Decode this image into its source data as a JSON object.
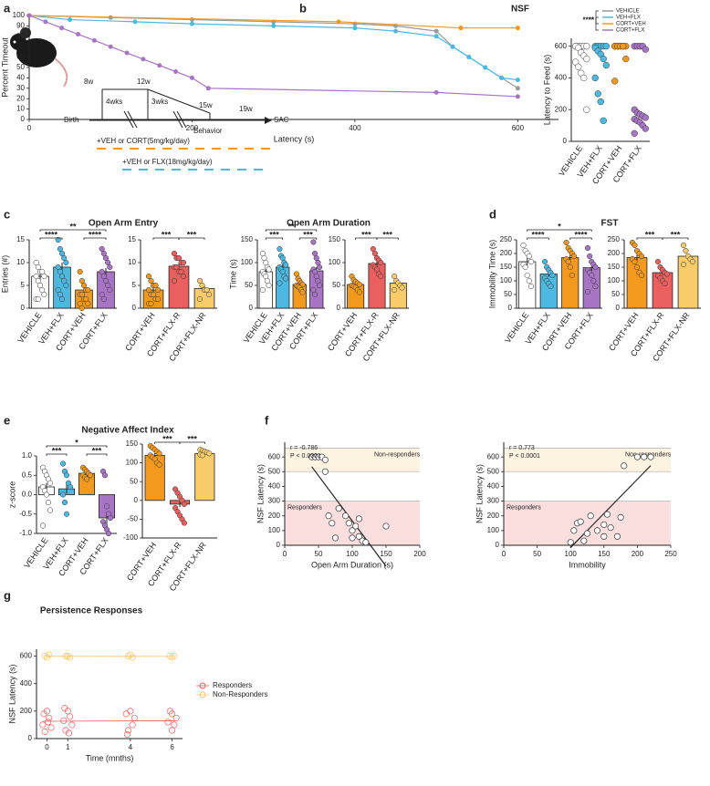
{
  "panel_labels": [
    "a",
    "b",
    "c",
    "d",
    "e",
    "f",
    "g"
  ],
  "diagram": {
    "ages": [
      "8w",
      "12w",
      "15w",
      "19w"
    ],
    "intervals": [
      "4wks",
      "3wks"
    ],
    "birth": "Birth",
    "behavior": "Behavior",
    "end": "SAC",
    "treatments": [
      "+VEH or CORT(5mg/kg/day)",
      "+VEH or FLX(18mg/kg/day)"
    ]
  },
  "chart_data": [
    {
      "type": "line",
      "title": "NSF",
      "x_label": "Latency (s)",
      "y_label": "Percent Timeout",
      "xlim": [
        0,
        650
      ],
      "xticks": [
        0,
        200,
        400,
        600
      ],
      "ylim": [
        0,
        100
      ],
      "yticks": [
        0,
        10,
        20,
        30,
        40,
        50,
        60,
        70,
        80,
        90,
        100
      ],
      "annotations": [
        "**",
        "****"
      ],
      "series": [
        {
          "name": "VEHICLE",
          "color": "#9a9a9a",
          "x": [
            0,
            100,
            200,
            300,
            400,
            450,
            500,
            520,
            540,
            560,
            580,
            600
          ],
          "values": [
            100,
            98,
            96,
            94,
            92,
            90,
            85,
            70,
            60,
            50,
            40,
            30
          ]
        },
        {
          "name": "VEH+FLX",
          "color": "#4db8e0",
          "x": [
            0,
            50,
            130,
            200,
            300,
            400,
            450,
            500,
            520,
            540,
            560,
            580,
            600
          ],
          "values": [
            100,
            96,
            94,
            92,
            90,
            88,
            85,
            80,
            70,
            60,
            50,
            40,
            38
          ]
        },
        {
          "name": "CORT+VEH",
          "color": "#f39a1e",
          "x": [
            0,
            380,
            530,
            600
          ],
          "values": [
            100,
            94,
            88,
            88
          ]
        },
        {
          "name": "CORT+FLX",
          "color": "#a874c4",
          "x": [
            0,
            20,
            40,
            60,
            80,
            100,
            120,
            140,
            160,
            180,
            200,
            220,
            500,
            600
          ],
          "values": [
            100,
            94,
            88,
            82,
            76,
            70,
            64,
            58,
            52,
            46,
            40,
            30,
            26,
            22
          ]
        }
      ]
    },
    {
      "type": "strip",
      "y_label": "Latency to Feed (s)",
      "categories": [
        "VEHICLE",
        "VEH+FLX",
        "CORT+VEH",
        "CORT+FLX"
      ],
      "colors": [
        "#ffffff",
        "#4db8e0",
        "#f39a1e",
        "#a874c4"
      ],
      "label_colors": [
        "#222222",
        "#4db8e0",
        "#f39a1e",
        "#a874c4"
      ],
      "ylim": [
        0,
        650
      ],
      "yticks": [
        0,
        200,
        400,
        600
      ],
      "points": [
        [
          600,
          600,
          600,
          600,
          600,
          600,
          590,
          560,
          540,
          520,
          500,
          470,
          430,
          400,
          200
        ],
        [
          600,
          600,
          600,
          600,
          600,
          590,
          570,
          550,
          520,
          480,
          400,
          300,
          250,
          130
        ],
        [
          600,
          600,
          600,
          600,
          600,
          600,
          600,
          600,
          600,
          520,
          380
        ],
        [
          600,
          600,
          600,
          600,
          580,
          200,
          180,
          170,
          160,
          150,
          140,
          130,
          120,
          100,
          80,
          50
        ]
      ]
    },
    {
      "type": "bar",
      "title": "Open Arm Entry",
      "y_label": "Entries (#)",
      "categories": [
        "VEHICLE",
        "VEH+FLX",
        "CORT+VEH",
        "CORT+FLX"
      ],
      "colors": [
        "#ffffff",
        "#4db8e0",
        "#f39a1e",
        "#a874c4"
      ],
      "values": [
        7,
        9,
        4,
        8
      ],
      "errors": [
        0.8,
        1,
        0.6,
        0.8
      ],
      "ylim": [
        0,
        15
      ],
      "yticks": [
        0,
        5,
        10,
        15
      ],
      "annotations": [
        "**",
        "****",
        "****"
      ],
      "points": [
        [
          10,
          9,
          8,
          8,
          7,
          7,
          6,
          5,
          4,
          3,
          2,
          2
        ],
        [
          15,
          13,
          12,
          11,
          10,
          9,
          8,
          7,
          6,
          5,
          4,
          3,
          2
        ],
        [
          8,
          6,
          5,
          4,
          4,
          3,
          3,
          2,
          2,
          1,
          1,
          0
        ],
        [
          13,
          12,
          11,
          10,
          9,
          8,
          7,
          6,
          5,
          4,
          3,
          2
        ]
      ]
    },
    {
      "type": "bar",
      "categories": [
        "CORT+VEH",
        "CORT+FLX-R",
        "CORT+FLX-NR"
      ],
      "colors": [
        "#f39a1e",
        "#e9605f",
        "#f9cc6a"
      ],
      "values": [
        4,
        9.2,
        4.3
      ],
      "errors": [
        0.5,
        0.6,
        0.7
      ],
      "ylim": [
        0,
        15
      ],
      "yticks": [
        0,
        5,
        10,
        15
      ],
      "annotations": [
        "***",
        "***"
      ],
      "points": [
        [
          7,
          6,
          5,
          5,
          4,
          4,
          3,
          3,
          2,
          2,
          1,
          1
        ],
        [
          12,
          11,
          11,
          10,
          10,
          9,
          9,
          8,
          8,
          7,
          6
        ],
        [
          6,
          5,
          4,
          4,
          3,
          2
        ]
      ]
    },
    {
      "type": "bar",
      "title": "Open Arm Duration",
      "y_label": "Time (s)",
      "categories": [
        "VEHICLE",
        "VEH+FLX",
        "CORT+VEH",
        "CORT+FLX"
      ],
      "colors": [
        "#ffffff",
        "#4db8e0",
        "#f39a1e",
        "#a874c4"
      ],
      "values": [
        80,
        90,
        52,
        82
      ],
      "errors": [
        7,
        7,
        4,
        8
      ],
      "ylim": [
        0,
        150
      ],
      "yticks": [
        0,
        50,
        100,
        150
      ],
      "annotations": [
        "**",
        "***",
        "***"
      ],
      "points": [
        [
          120,
          110,
          100,
          90,
          85,
          80,
          75,
          70,
          60,
          50,
          40
        ],
        [
          130,
          115,
          110,
          100,
          95,
          90,
          85,
          80,
          70,
          65,
          55
        ],
        [
          75,
          65,
          60,
          55,
          52,
          50,
          48,
          45,
          40,
          35
        ],
        [
          145,
          120,
          110,
          100,
          90,
          85,
          80,
          70,
          60,
          50,
          40,
          30
        ]
      ]
    },
    {
      "type": "bar",
      "categories": [
        "CORT+VEH",
        "CORT+FLX-R",
        "CORT+FLX-NR"
      ],
      "colors": [
        "#f39a1e",
        "#e9605f",
        "#f9cc6a"
      ],
      "values": [
        52,
        98,
        55
      ],
      "errors": [
        4,
        6,
        5
      ],
      "ylim": [
        0,
        150
      ],
      "yticks": [
        0,
        50,
        100,
        150
      ],
      "annotations": [
        "***",
        "***"
      ],
      "points": [
        [
          70,
          62,
          58,
          55,
          52,
          50,
          48,
          45,
          40,
          35
        ],
        [
          130,
          120,
          110,
          105,
          100,
          95,
          90,
          85,
          75,
          70
        ],
        [
          70,
          60,
          55,
          50,
          45,
          40
        ]
      ]
    },
    {
      "type": "bar",
      "title": "FST",
      "y_label": "Immobility Time (s)",
      "categories": [
        "VEHICLE",
        "VEH+FLX",
        "CORT+VEH",
        "CORT+FLX"
      ],
      "colors": [
        "#ffffff",
        "#4db8e0",
        "#f39a1e",
        "#a874c4"
      ],
      "values": [
        170,
        125,
        185,
        148
      ],
      "errors": [
        15,
        10,
        12,
        12
      ],
      "ylim": [
        0,
        250
      ],
      "yticks": [
        0,
        50,
        100,
        150,
        200,
        250
      ],
      "annotations": [
        "*",
        "****",
        "****"
      ],
      "points": [
        [
          230,
          210,
          200,
          190,
          170,
          160,
          150,
          120,
          100,
          80
        ],
        [
          170,
          150,
          140,
          130,
          120,
          110,
          100,
          90,
          80
        ],
        [
          240,
          220,
          210,
          200,
          190,
          180,
          170,
          150,
          120
        ],
        [
          220,
          190,
          170,
          160,
          150,
          140,
          130,
          120,
          100,
          80,
          60
        ]
      ]
    },
    {
      "type": "bar",
      "categories": [
        "CORT+VEH",
        "CORT+FLX-R",
        "CORT+FLX-NR"
      ],
      "colors": [
        "#f39a1e",
        "#e9605f",
        "#f9cc6a"
      ],
      "values": [
        185,
        130,
        190
      ],
      "errors": [
        10,
        8,
        10
      ],
      "ylim": [
        0,
        250
      ],
      "yticks": [
        0,
        50,
        100,
        150,
        200,
        250
      ],
      "annotations": [
        "***",
        "***"
      ],
      "points": [
        [
          240,
          230,
          210,
          200,
          190,
          180,
          170,
          150,
          130,
          120
        ],
        [
          170,
          150,
          140,
          130,
          125,
          120,
          110,
          100,
          90
        ],
        [
          230,
          210,
          190,
          180,
          170,
          160
        ]
      ]
    },
    {
      "type": "bar",
      "title": "Negative Affect Index",
      "y_label": "z-score",
      "categories": [
        "VEHICLE",
        "VEH+FLX",
        "CORT+VEH",
        "CORT+FLX"
      ],
      "colors": [
        "#ffffff",
        "#4db8e0",
        "#f39a1e",
        "#a874c4"
      ],
      "values": [
        0.2,
        0.15,
        0.55,
        -0.6
      ],
      "errors": [
        0.1,
        0.12,
        0.06,
        0.15
      ],
      "ylim": [
        -1,
        1
      ],
      "yticks": [
        {
          "value": -1,
          "label": "-1.0"
        },
        {
          "value": -0.5,
          "label": "-0.5"
        },
        {
          "value": 0,
          "label": "0.0"
        },
        {
          "value": 0.5,
          "label": "0.5"
        },
        {
          "value": 1,
          "label": "1.0"
        }
      ],
      "annotations": [
        "*",
        "***",
        "***"
      ],
      "points": [
        [
          0.7,
          0.6,
          0.5,
          0.4,
          0.3,
          0.2,
          0.1,
          0,
          -0.2,
          -0.4,
          -0.8
        ],
        [
          0.8,
          0.6,
          0.5,
          0.3,
          0.2,
          0,
          -0.2,
          -0.5
        ],
        [
          0.7,
          0.65,
          0.6,
          0.55,
          0.5,
          0.5,
          0.45,
          0.4
        ],
        [
          0.6,
          0.5,
          -0.3,
          -0.5,
          -0.6,
          -0.7,
          -0.8,
          -0.9,
          -1
        ]
      ]
    },
    {
      "type": "bar",
      "categories": [
        "CORT+VEH",
        "CORT+FLX-R",
        "CORT+FLX-NR"
      ],
      "colors": [
        "#f39a1e",
        "#e9605f",
        "#f9cc6a"
      ],
      "values": [
        120,
        -10,
        125
      ],
      "errors": [
        6,
        8,
        3
      ],
      "ylim": [
        -100,
        150
      ],
      "yticks": [
        -100,
        -50,
        0,
        50,
        100,
        150
      ],
      "annotations": [
        "***",
        "***"
      ],
      "points": [
        [
          145,
          140,
          135,
          130,
          125,
          120,
          115,
          110,
          100,
          95
        ],
        [
          30,
          20,
          10,
          0,
          -10,
          -20,
          -30,
          -40,
          -50,
          -60
        ],
        [
          135,
          132,
          130,
          128,
          125,
          122,
          120
        ]
      ]
    },
    {
      "type": "scatter",
      "x_label": "Open Arm Duration (s)",
      "y_label": "NSF Latency (s)",
      "xlim": [
        0,
        200
      ],
      "xticks": [
        0,
        50,
        100,
        150,
        200
      ],
      "ylim": [
        0,
        700
      ],
      "yticks": [
        0,
        100,
        200,
        300,
        400,
        500,
        600
      ],
      "annotations": [
        "r = -0.786",
        "P < 0.0001"
      ],
      "bands": [
        {
          "label": "Non-responders",
          "range": [
            500,
            660
          ],
          "color": "#fdf3e1"
        },
        {
          "label": "Responders",
          "range": [
            0,
            300
          ],
          "color": "#fbdede"
        }
      ],
      "series": [
        {
          "color": "#ffffff",
          "x": [
            40,
            45,
            50,
            55,
            60,
            60,
            65,
            70,
            75,
            80,
            90,
            95,
            100,
            100,
            105,
            110,
            110,
            115,
            120,
            150
          ],
          "values": [
            600,
            600,
            600,
            600,
            580,
            500,
            200,
            150,
            50,
            250,
            200,
            150,
            100,
            50,
            130,
            180,
            60,
            30,
            20,
            130
          ]
        }
      ]
    },
    {
      "type": "scatter",
      "x_label": "Immobility",
      "y_label": "NSF Latency (s)",
      "xlim": [
        0,
        250
      ],
      "xticks": [
        0,
        50,
        100,
        150,
        200,
        250
      ],
      "ylim": [
        0,
        700
      ],
      "yticks": [
        0,
        100,
        200,
        300,
        400,
        500,
        600
      ],
      "annotations": [
        "r = 0.773",
        "P < 0.0001"
      ],
      "bands": [
        {
          "label": "Non-responders",
          "range": [
            500,
            660
          ],
          "color": "#fdf3e1"
        },
        {
          "label": "Responders",
          "range": [
            0,
            300
          ],
          "color": "#fbdede"
        }
      ],
      "series": [
        {
          "color": "#ffffff",
          "x": [
            100,
            105,
            110,
            115,
            120,
            125,
            130,
            140,
            150,
            150,
            155,
            160,
            170,
            175,
            180,
            200,
            210,
            220
          ],
          "values": [
            20,
            100,
            150,
            160,
            30,
            80,
            200,
            100,
            140,
            60,
            210,
            120,
            60,
            190,
            540,
            600,
            600,
            600
          ]
        }
      ]
    },
    {
      "type": "scatter",
      "title": "Persistence Responses",
      "x_label": "Time (mnths)",
      "y_label": "NSF Latency (s)",
      "xlim": [
        -0.5,
        6.5
      ],
      "xticks": [
        0,
        1,
        4,
        6
      ],
      "ylim": [
        0,
        650
      ],
      "yticks": [
        0,
        200,
        400,
        600
      ],
      "series": [
        {
          "name": "Responders",
          "color": "#e9605f",
          "hollow": true,
          "x": [
            -0.2,
            -0.1,
            0,
            0.1,
            0.2,
            -0.15,
            0.05,
            0.8,
            0.9,
            1,
            1.1,
            1.2,
            0.85,
            1.05,
            3.8,
            3.9,
            4,
            4.1,
            4.2,
            3.85,
            5.8,
            5.9,
            6,
            6.1,
            6.2,
            6
          ],
          "values": [
            100,
            50,
            200,
            150,
            80,
            180,
            120,
            130,
            60,
            200,
            160,
            100,
            220,
            40,
            180,
            60,
            200,
            100,
            150,
            30,
            120,
            200,
            180,
            100,
            150,
            60
          ]
        },
        {
          "name": "Non-Responders",
          "color": "#f9c56a",
          "hollow": true,
          "x": [
            -0.1,
            0,
            0.1,
            0.9,
            1,
            1.1,
            3.9,
            4,
            4.1,
            5.9,
            6,
            6.1
          ],
          "values": [
            600,
            590,
            610,
            600,
            600,
            590,
            600,
            610,
            590,
            600,
            590,
            600
          ]
        }
      ]
    }
  ]
}
